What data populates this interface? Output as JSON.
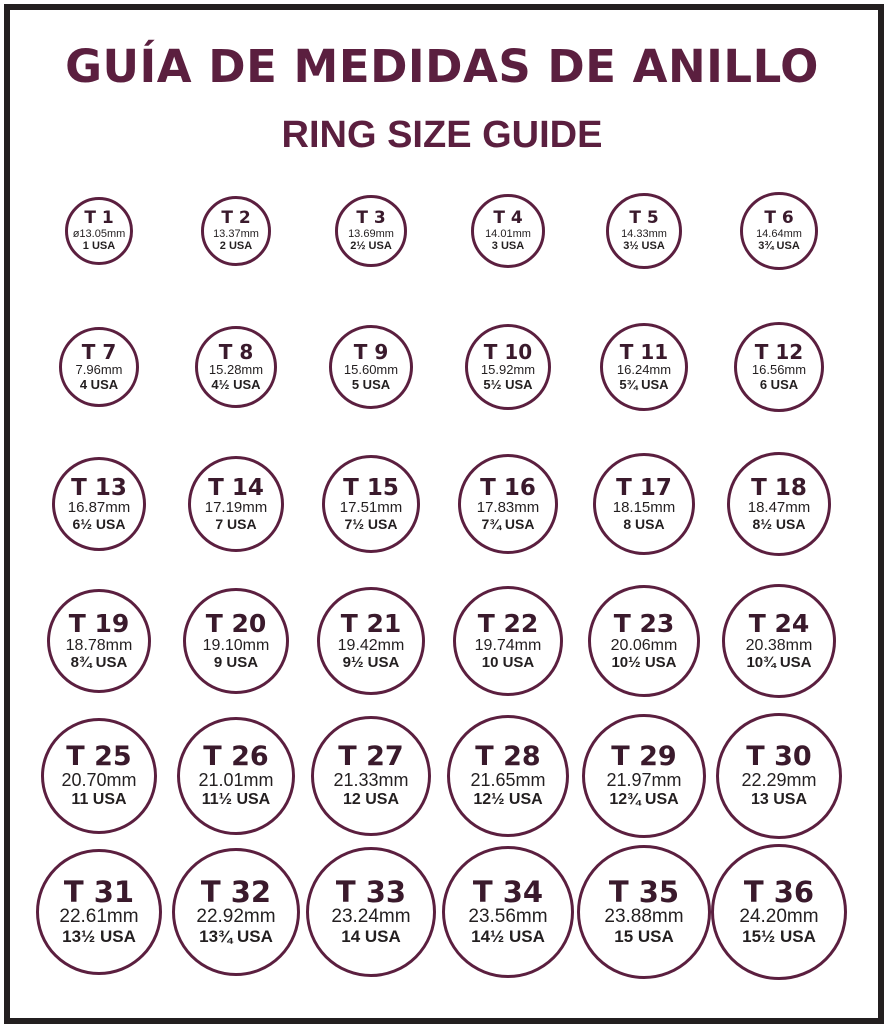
{
  "title": "GUÍA DE MEDIDAS DE ANILLO",
  "subtitle": "RING SIZE GUIDE",
  "colors": {
    "title": "#5b1f3f",
    "ring_border": "#5b1f3f",
    "frame": "#231f20"
  },
  "rows": [
    [
      {
        "size": "T 1",
        "mm": "ø13.05mm",
        "usa": "1 USA"
      },
      {
        "size": "T 2",
        "mm": "13.37mm",
        "usa": "2 USA"
      },
      {
        "size": "T 3",
        "mm": "13.69mm",
        "usa": "2½ USA"
      },
      {
        "size": "T 4",
        "mm": "14.01mm",
        "usa": "3 USA"
      },
      {
        "size": "T 5",
        "mm": "14.33mm",
        "usa": "3½ USA"
      },
      {
        "size": "T 6",
        "mm": "14.64mm",
        "usa": "3¾ USA"
      }
    ],
    [
      {
        "size": "T 7",
        "mm": "7.96mm",
        "usa": "4 USA"
      },
      {
        "size": "T 8",
        "mm": "15.28mm",
        "usa": "4½ USA"
      },
      {
        "size": "T 9",
        "mm": "15.60mm",
        "usa": "5 USA"
      },
      {
        "size": "T 10",
        "mm": "15.92mm",
        "usa": "5½ USA"
      },
      {
        "size": "T 11",
        "mm": "16.24mm",
        "usa": "5¾ USA"
      },
      {
        "size": "T 12",
        "mm": "16.56mm",
        "usa": "6 USA"
      }
    ],
    [
      {
        "size": "T 13",
        "mm": "16.87mm",
        "usa": "6½ USA"
      },
      {
        "size": "T 14",
        "mm": "17.19mm",
        "usa": "7 USA"
      },
      {
        "size": "T 15",
        "mm": "17.51mm",
        "usa": "7½ USA"
      },
      {
        "size": "T 16",
        "mm": "17.83mm",
        "usa": "7¾ USA"
      },
      {
        "size": "T 17",
        "mm": "18.15mm",
        "usa": "8 USA"
      },
      {
        "size": "T 18",
        "mm": "18.47mm",
        "usa": "8½ USA"
      }
    ],
    [
      {
        "size": "T 19",
        "mm": "18.78mm",
        "usa": "8¾ USA"
      },
      {
        "size": "T 20",
        "mm": "19.10mm",
        "usa": "9 USA"
      },
      {
        "size": "T 21",
        "mm": "19.42mm",
        "usa": "9½ USA"
      },
      {
        "size": "T 22",
        "mm": "19.74mm",
        "usa": "10 USA"
      },
      {
        "size": "T 23",
        "mm": "20.06mm",
        "usa": "10½ USA"
      },
      {
        "size": "T 24",
        "mm": "20.38mm",
        "usa": "10¾ USA"
      }
    ],
    [
      {
        "size": "T 25",
        "mm": "20.70mm",
        "usa": "11 USA"
      },
      {
        "size": "T 26",
        "mm": "21.01mm",
        "usa": "11½ USA"
      },
      {
        "size": "T 27",
        "mm": "21.33mm",
        "usa": "12 USA"
      },
      {
        "size": "T 28",
        "mm": "21.65mm",
        "usa": "12½ USA"
      },
      {
        "size": "T 29",
        "mm": "21.97mm",
        "usa": "12¾ USA"
      },
      {
        "size": "T 30",
        "mm": "22.29mm",
        "usa": "13 USA"
      }
    ],
    [
      {
        "size": "T 31",
        "mm": "22.61mm",
        "usa": "13½ USA"
      },
      {
        "size": "T 32",
        "mm": "22.92mm",
        "usa": "13¾ USA"
      },
      {
        "size": "T 33",
        "mm": "23.24mm",
        "usa": "14 USA"
      },
      {
        "size": "T 34",
        "mm": "23.56mm",
        "usa": "14½ USA"
      },
      {
        "size": "T 35",
        "mm": "23.88mm",
        "usa": "15 USA"
      },
      {
        "size": "T 36",
        "mm": "24.20mm",
        "usa": "15½ USA"
      }
    ]
  ]
}
